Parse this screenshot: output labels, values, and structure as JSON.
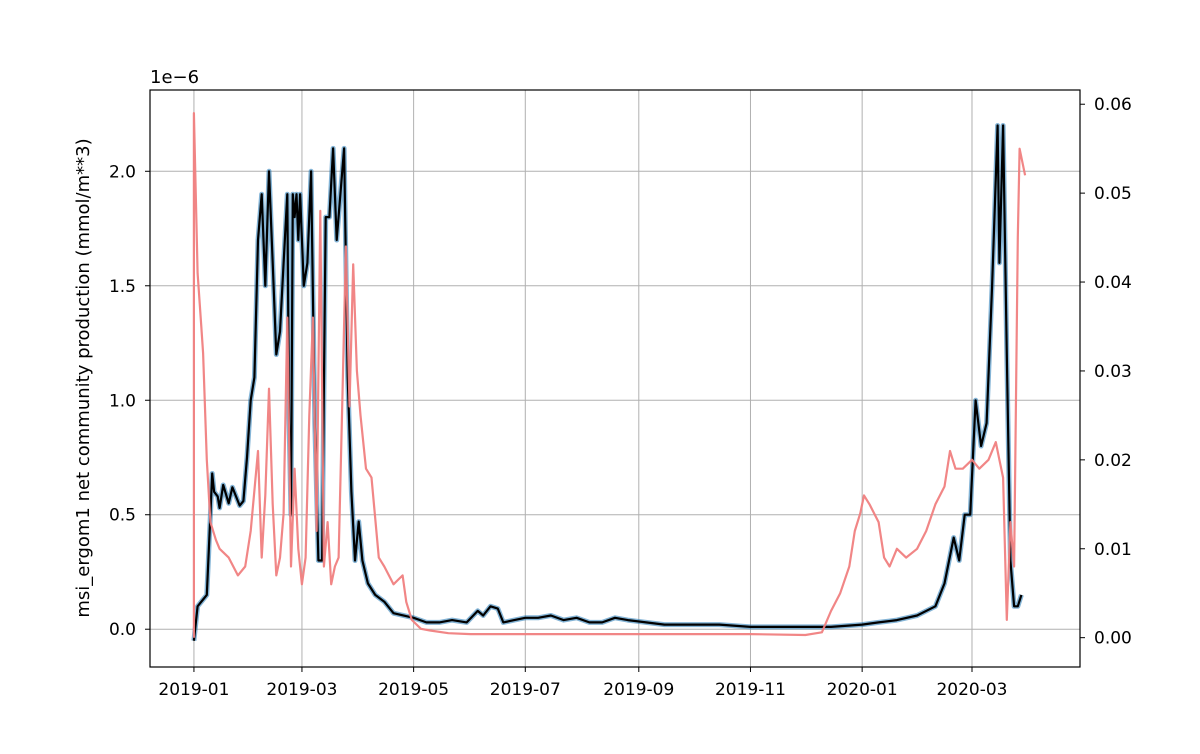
{
  "chart_data": {
    "type": "line",
    "title": "",
    "xlabel": "",
    "ylabel": "msi_ergom1 net community production (mmol/m**3)",
    "y_offset_text": "1e−6",
    "grid": true,
    "legend": "none",
    "x_range": [
      "2018-12-08",
      "2020-04-29"
    ],
    "ylim_left": [
      -1.65e-07,
      2.355e-06
    ],
    "ylim_right": [
      -0.0033,
      0.0616
    ],
    "x_ticks": [
      "2019-01",
      "2019-03",
      "2019-05",
      "2019-07",
      "2019-09",
      "2019-11",
      "2020-01",
      "2020-03"
    ],
    "x_tick_dates": [
      "2019-01-01",
      "2019-03-01",
      "2019-05-01",
      "2019-07-01",
      "2019-09-01",
      "2019-11-01",
      "2020-01-01",
      "2020-03-01"
    ],
    "y_ticks_left": [
      "0.0",
      "0.5",
      "1.0",
      "1.5",
      "2.0"
    ],
    "y_tick_values_left": [
      0,
      5e-07,
      1e-06,
      1.5e-06,
      2e-06
    ],
    "y_ticks_right": [
      "0.00",
      "0.01",
      "0.02",
      "0.03",
      "0.04",
      "0.05",
      "0.06"
    ],
    "y_tick_values_right": [
      0,
      0.01,
      0.02,
      0.03,
      0.04,
      0.05,
      0.06
    ],
    "colors": {
      "primary": "#000000",
      "band": "#1f77b4",
      "secondary": "#f08080"
    },
    "series": [
      {
        "axis": "left",
        "color": "#000000",
        "points": [
          [
            "2019-01-01",
            -5e-08
          ],
          [
            "2019-01-03",
            1e-07
          ],
          [
            "2019-01-06",
            1.3e-07
          ],
          [
            "2019-01-08",
            1.5e-07
          ],
          [
            "2019-01-10",
            5e-07
          ],
          [
            "2019-01-11",
            6.8e-07
          ],
          [
            "2019-01-12",
            6e-07
          ],
          [
            "2019-01-14",
            5.8e-07
          ],
          [
            "2019-01-15",
            5.3e-07
          ],
          [
            "2019-01-17",
            6.3e-07
          ],
          [
            "2019-01-20",
            5.5e-07
          ],
          [
            "2019-01-22",
            6.2e-07
          ],
          [
            "2019-01-26",
            5.4e-07
          ],
          [
            "2019-01-28",
            5.6e-07
          ],
          [
            "2019-01-30",
            7.5e-07
          ],
          [
            "2019-02-01",
            1e-06
          ],
          [
            "2019-02-03",
            1.1e-06
          ],
          [
            "2019-02-05",
            1.7e-06
          ],
          [
            "2019-02-07",
            1.9e-06
          ],
          [
            "2019-02-09",
            1.5e-06
          ],
          [
            "2019-02-11",
            2e-06
          ],
          [
            "2019-02-13",
            1.6e-06
          ],
          [
            "2019-02-15",
            1.2e-06
          ],
          [
            "2019-02-17",
            1.3e-06
          ],
          [
            "2019-02-19",
            1.6e-06
          ],
          [
            "2019-02-21",
            1.9e-06
          ],
          [
            "2019-02-22",
            9e-07
          ],
          [
            "2019-02-23",
            5e-07
          ],
          [
            "2019-02-24",
            1.9e-06
          ],
          [
            "2019-02-25",
            1.8e-06
          ],
          [
            "2019-02-26",
            1.9e-06
          ],
          [
            "2019-02-27",
            1.7e-06
          ],
          [
            "2019-02-28",
            1.9e-06
          ],
          [
            "2019-03-02",
            1.5e-06
          ],
          [
            "2019-03-04",
            1.6e-06
          ],
          [
            "2019-03-06",
            2e-06
          ],
          [
            "2019-03-08",
            9e-07
          ],
          [
            "2019-03-10",
            3e-07
          ],
          [
            "2019-03-12",
            3e-07
          ],
          [
            "2019-03-14",
            1.8e-06
          ],
          [
            "2019-03-16",
            1.8e-06
          ],
          [
            "2019-03-18",
            2.1e-06
          ],
          [
            "2019-03-20",
            1.7e-06
          ],
          [
            "2019-03-22",
            1.9e-06
          ],
          [
            "2019-03-24",
            2.1e-06
          ],
          [
            "2019-03-26",
            1.1e-06
          ],
          [
            "2019-03-28",
            6e-07
          ],
          [
            "2019-03-30",
            3e-07
          ],
          [
            "2019-04-01",
            4.7e-07
          ],
          [
            "2019-04-03",
            3e-07
          ],
          [
            "2019-04-06",
            2e-07
          ],
          [
            "2019-04-10",
            1.5e-07
          ],
          [
            "2019-04-15",
            1.2e-07
          ],
          [
            "2019-04-20",
            7e-08
          ],
          [
            "2019-05-01",
            5e-08
          ],
          [
            "2019-05-08",
            3e-08
          ],
          [
            "2019-05-15",
            3e-08
          ],
          [
            "2019-05-22",
            4e-08
          ],
          [
            "2019-05-30",
            3e-08
          ],
          [
            "2019-06-05",
            8e-08
          ],
          [
            "2019-06-08",
            6e-08
          ],
          [
            "2019-06-12",
            1e-07
          ],
          [
            "2019-06-16",
            9e-08
          ],
          [
            "2019-06-19",
            3e-08
          ],
          [
            "2019-06-25",
            4e-08
          ],
          [
            "2019-07-01",
            5e-08
          ],
          [
            "2019-07-08",
            5e-08
          ],
          [
            "2019-07-15",
            6e-08
          ],
          [
            "2019-07-22",
            4e-08
          ],
          [
            "2019-07-29",
            5e-08
          ],
          [
            "2019-08-05",
            3e-08
          ],
          [
            "2019-08-12",
            3e-08
          ],
          [
            "2019-08-19",
            5e-08
          ],
          [
            "2019-08-26",
            4e-08
          ],
          [
            "2019-09-05",
            3e-08
          ],
          [
            "2019-09-15",
            2e-08
          ],
          [
            "2019-10-01",
            2e-08
          ],
          [
            "2019-10-15",
            2e-08
          ],
          [
            "2019-11-01",
            1e-08
          ],
          [
            "2019-11-15",
            1e-08
          ],
          [
            "2019-12-01",
            1e-08
          ],
          [
            "2019-12-15",
            1e-08
          ],
          [
            "2020-01-01",
            2e-08
          ],
          [
            "2020-01-10",
            3e-08
          ],
          [
            "2020-01-20",
            4e-08
          ],
          [
            "2020-01-31",
            6e-08
          ],
          [
            "2020-02-10",
            1e-07
          ],
          [
            "2020-02-15",
            2e-07
          ],
          [
            "2020-02-20",
            4e-07
          ],
          [
            "2020-02-23",
            3e-07
          ],
          [
            "2020-02-26",
            5e-07
          ],
          [
            "2020-02-29",
            5e-07
          ],
          [
            "2020-03-03",
            1e-06
          ],
          [
            "2020-03-06",
            8e-07
          ],
          [
            "2020-03-09",
            9e-07
          ],
          [
            "2020-03-12",
            1.5e-06
          ],
          [
            "2020-03-15",
            2.2e-06
          ],
          [
            "2020-03-16",
            1.6e-06
          ],
          [
            "2020-03-18",
            2.2e-06
          ],
          [
            "2020-03-20",
            1.2e-06
          ],
          [
            "2020-03-22",
            3e-07
          ],
          [
            "2020-03-24",
            1e-07
          ],
          [
            "2020-03-26",
            1e-07
          ],
          [
            "2020-03-28",
            1.5e-07
          ]
        ]
      },
      {
        "axis": "right",
        "color": "#f08080",
        "points": [
          [
            "2019-01-01",
            0
          ],
          [
            "2019-01-01",
            0.059
          ],
          [
            "2019-01-03",
            0.041
          ],
          [
            "2019-01-05",
            0.035
          ],
          [
            "2019-01-06",
            0.032
          ],
          [
            "2019-01-08",
            0.02
          ],
          [
            "2019-01-10",
            0.013
          ],
          [
            "2019-01-13",
            0.011
          ],
          [
            "2019-01-15",
            0.01
          ],
          [
            "2019-01-20",
            0.009
          ],
          [
            "2019-01-25",
            0.007
          ],
          [
            "2019-01-29",
            0.008
          ],
          [
            "2019-02-01",
            0.012
          ],
          [
            "2019-02-05",
            0.021
          ],
          [
            "2019-02-07",
            0.009
          ],
          [
            "2019-02-09",
            0.016
          ],
          [
            "2019-02-11",
            0.028
          ],
          [
            "2019-02-13",
            0.015
          ],
          [
            "2019-02-15",
            0.007
          ],
          [
            "2019-02-17",
            0.009
          ],
          [
            "2019-02-19",
            0.014
          ],
          [
            "2019-02-21",
            0.036
          ],
          [
            "2019-02-23",
            0.008
          ],
          [
            "2019-02-25",
            0.019
          ],
          [
            "2019-02-27",
            0.01
          ],
          [
            "2019-03-01",
            0.006
          ],
          [
            "2019-03-03",
            0.009
          ],
          [
            "2019-03-05",
            0.025
          ],
          [
            "2019-03-07",
            0.036
          ],
          [
            "2019-03-09",
            0.012
          ],
          [
            "2019-03-11",
            0.048
          ],
          [
            "2019-03-13",
            0.008
          ],
          [
            "2019-03-15",
            0.013
          ],
          [
            "2019-03-17",
            0.006
          ],
          [
            "2019-03-19",
            0.008
          ],
          [
            "2019-03-21",
            0.009
          ],
          [
            "2019-03-23",
            0.026
          ],
          [
            "2019-03-25",
            0.044
          ],
          [
            "2019-03-27",
            0.026
          ],
          [
            "2019-03-29",
            0.042
          ],
          [
            "2019-03-31",
            0.03
          ],
          [
            "2019-04-02",
            0.025
          ],
          [
            "2019-04-05",
            0.019
          ],
          [
            "2019-04-08",
            0.018
          ],
          [
            "2019-04-12",
            0.009
          ],
          [
            "2019-04-15",
            0.008
          ],
          [
            "2019-04-20",
            0.006
          ],
          [
            "2019-04-25",
            0.007
          ],
          [
            "2019-04-27",
            0.004
          ],
          [
            "2019-04-30",
            0.002
          ],
          [
            "2019-05-05",
            0.001
          ],
          [
            "2019-05-10",
            0.0008
          ],
          [
            "2019-05-20",
            0.0005
          ],
          [
            "2019-06-01",
            0.0004
          ],
          [
            "2019-06-10",
            0.0004
          ],
          [
            "2019-06-20",
            0.0004
          ],
          [
            "2019-07-01",
            0.0004
          ],
          [
            "2019-08-01",
            0.0004
          ],
          [
            "2019-09-01",
            0.0004
          ],
          [
            "2019-10-01",
            0.0004
          ],
          [
            "2019-11-01",
            0.0004
          ],
          [
            "2019-12-01",
            0.0003
          ],
          [
            "2019-12-10",
            0.0006
          ],
          [
            "2019-12-15",
            0.003
          ],
          [
            "2019-12-20",
            0.005
          ],
          [
            "2019-12-25",
            0.008
          ],
          [
            "2019-12-28",
            0.012
          ],
          [
            "2019-12-31",
            0.014
          ],
          [
            "2020-01-02",
            0.016
          ],
          [
            "2020-01-05",
            0.015
          ],
          [
            "2020-01-10",
            0.013
          ],
          [
            "2020-01-13",
            0.009
          ],
          [
            "2020-01-16",
            0.008
          ],
          [
            "2020-01-20",
            0.01
          ],
          [
            "2020-01-25",
            0.009
          ],
          [
            "2020-01-31",
            0.01
          ],
          [
            "2020-02-05",
            0.012
          ],
          [
            "2020-02-10",
            0.015
          ],
          [
            "2020-02-15",
            0.017
          ],
          [
            "2020-02-18",
            0.021
          ],
          [
            "2020-02-21",
            0.019
          ],
          [
            "2020-02-25",
            0.019
          ],
          [
            "2020-03-01",
            0.02
          ],
          [
            "2020-03-05",
            0.019
          ],
          [
            "2020-03-10",
            0.02
          ],
          [
            "2020-03-14",
            0.022
          ],
          [
            "2020-03-16",
            0.02
          ],
          [
            "2020-03-18",
            0.018
          ],
          [
            "2020-03-20",
            0.002
          ],
          [
            "2020-03-22",
            0.013
          ],
          [
            "2020-03-24",
            0.008
          ],
          [
            "2020-03-26",
            0.045
          ],
          [
            "2020-03-27",
            0.055
          ],
          [
            "2020-03-30",
            0.052
          ]
        ]
      }
    ]
  }
}
